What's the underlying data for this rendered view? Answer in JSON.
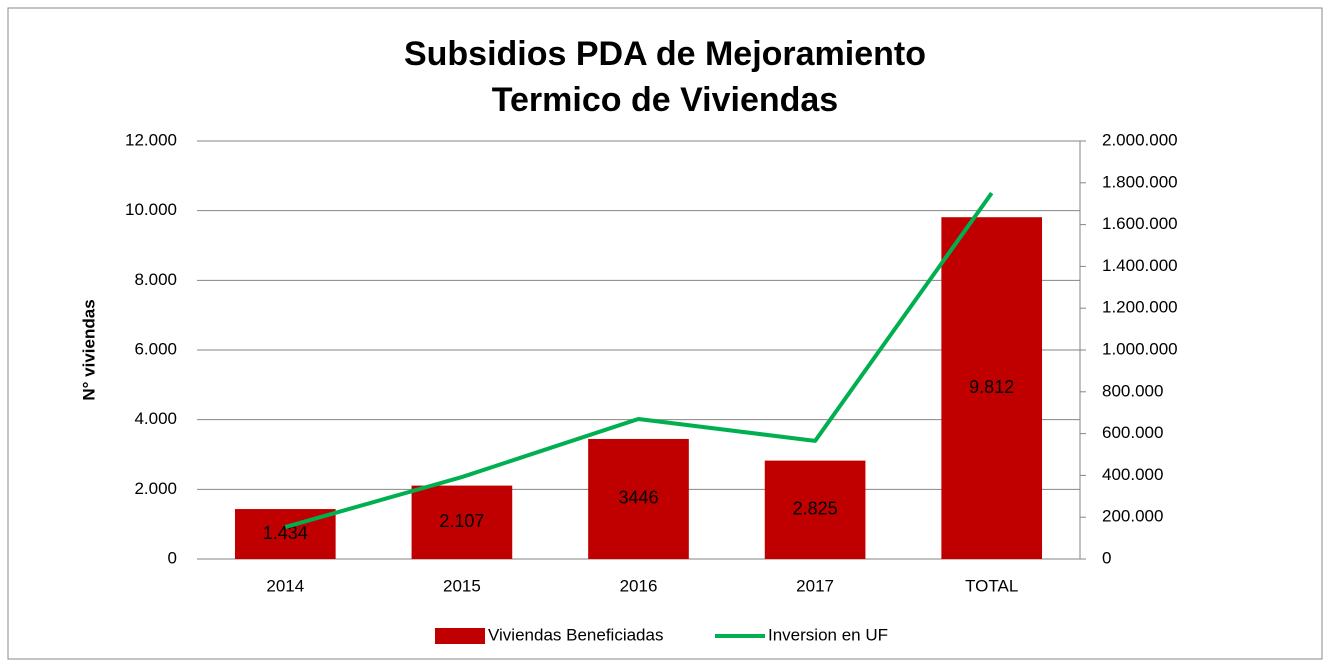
{
  "chart_data": {
    "type": "bar-line",
    "title": [
      "Subsidios PDA de Mejoramiento",
      "Termico de Viviendas"
    ],
    "ylabel": "N° viviendas",
    "categories": [
      "2014",
      "2015",
      "2016",
      "2017",
      "TOTAL"
    ],
    "series": [
      {
        "name": "Viviendas Beneficiadas",
        "type": "bar",
        "color": "#c00000",
        "values": [
          1434,
          2107,
          3446,
          2825,
          9812
        ],
        "value_labels": [
          "1.434",
          "2.107",
          "3446",
          "2.825",
          "9.812"
        ]
      },
      {
        "name": "Inversion en UF",
        "type": "line",
        "axis": "y2",
        "color": "#00b050",
        "values": [
          153000,
          392000,
          670000,
          565000,
          1751000
        ]
      }
    ],
    "ylim": [
      0,
      12000
    ],
    "yticks": [
      0,
      {
        "value": 2000,
        "label": "2.000"
      },
      {
        "value": 4000,
        "label": "4.000"
      },
      {
        "value": 6000,
        "label": "6.000"
      },
      {
        "value": 8000,
        "label": "8.000"
      },
      {
        "value": 10000,
        "label": "10.000"
      },
      {
        "value": 12000,
        "label": "12.000"
      }
    ],
    "y2lim": [
      0,
      2000000
    ],
    "y2ticks": [
      0,
      {
        "value": 200000,
        "label": "200.000"
      },
      {
        "value": 400000,
        "label": "400.000"
      },
      {
        "value": 600000,
        "label": "600.000"
      },
      {
        "value": 800000,
        "label": "800.000"
      },
      {
        "value": 1000000,
        "label": "1.000.000"
      },
      {
        "value": 1200000,
        "label": "1.200.000"
      },
      {
        "value": 1400000,
        "label": "1.400.000"
      },
      {
        "value": 1600000,
        "label": "1.600.000"
      },
      {
        "value": 1800000,
        "label": "1.800.000"
      },
      {
        "value": 2000000,
        "label": "2.000.000"
      }
    ],
    "grid": true,
    "legend": "bottom"
  }
}
